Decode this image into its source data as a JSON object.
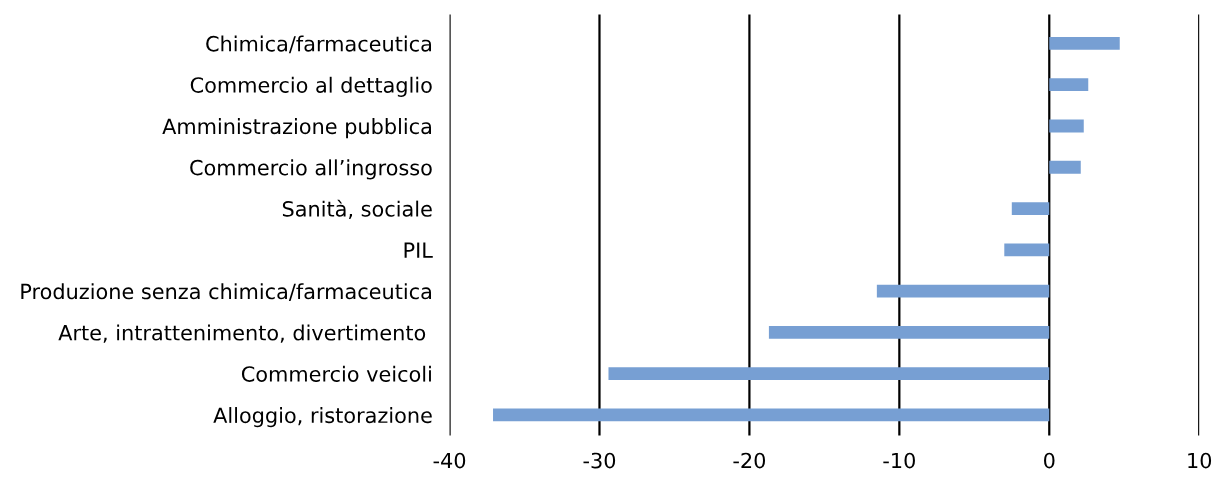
{
  "chart_data": {
    "type": "bar",
    "orientation": "horizontal",
    "categories": [
      "Chimica/farmaceutica",
      "Commercio al dettaglio",
      "Amministrazione pubblica",
      "Commercio all’ingrosso",
      "Sanità, sociale",
      "PIL",
      "Produzione senza chimica/farmaceutica",
      "Arte, intrattenimento, divertimento ",
      "Commercio veicoli",
      "Alloggio, ristorazione"
    ],
    "values": [
      4.7,
      2.6,
      2.3,
      2.1,
      -2.5,
      -3.0,
      -11.5,
      -18.7,
      -29.4,
      -37.1
    ],
    "color": "#779fd3",
    "xlim": [
      -40,
      10
    ],
    "xticks": [
      -40,
      -30,
      -20,
      -10,
      0,
      10
    ],
    "grid": "x"
  }
}
